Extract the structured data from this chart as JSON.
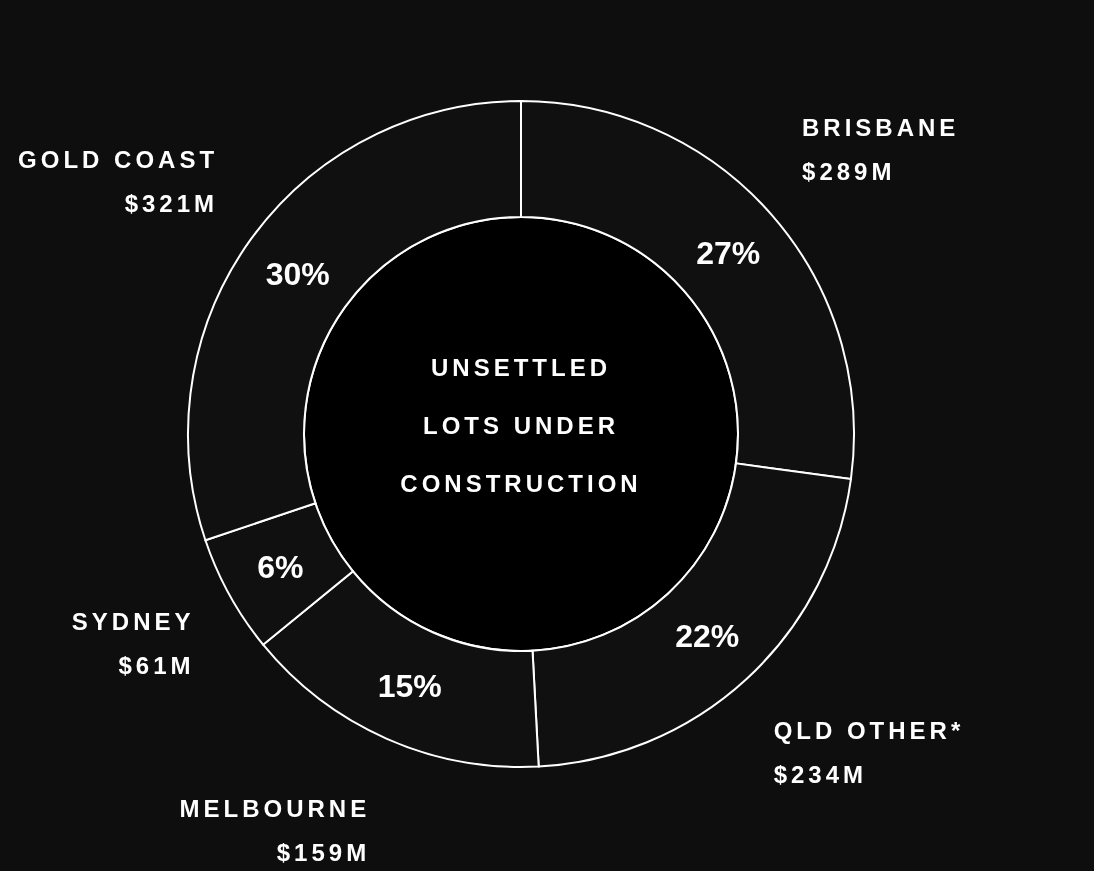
{
  "chart_data": {
    "type": "donut",
    "title": "UNSETTLED LOTS UNDER CONSTRUCTION",
    "categories": [
      "BRISBANE",
      "QLD OTHER*",
      "MELBOURNE",
      "SYDNEY",
      "GOLD COAST"
    ],
    "values": [
      289,
      234,
      159,
      61,
      321
    ],
    "colors": [
      "#101010",
      "#101010",
      "#101010",
      "#101010",
      "#101010"
    ],
    "value_labels": [
      "$289M",
      "$234M",
      "$159M",
      "$61M",
      "$321M"
    ],
    "annotations": [
      {
        "text": "27%",
        "x": "BRISBANE"
      },
      {
        "text": "22%",
        "x": "QLD OTHER*"
      },
      {
        "text": "15%",
        "x": "MELBOURNE"
      },
      {
        "text": "6%",
        "x": "SYDNEY"
      },
      {
        "text": "30%",
        "x": "GOLD COAST"
      }
    ]
  }
}
